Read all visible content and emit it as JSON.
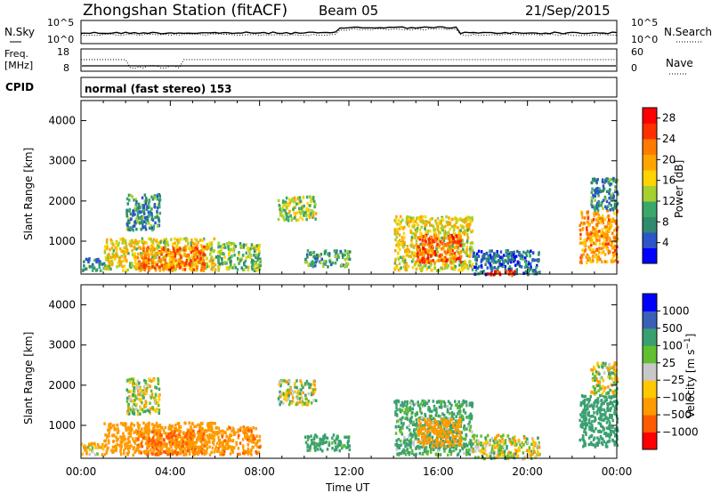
{
  "header": {
    "station": "Zhongshan Station (fitACF)",
    "beam": "Beam 05",
    "date": "21/Sep/2015"
  },
  "top_panel": {
    "left_label": "N.Sky",
    "left_ticks": [
      "10^5",
      "10^0"
    ],
    "right_label": "N.Search",
    "right_ticks": [
      "10^5",
      "10^0"
    ]
  },
  "freq_panel": {
    "left_label_1": "Freq.",
    "left_label_2": "[MHz]",
    "left_ticks": [
      "18",
      "8"
    ],
    "right_label": "Nave",
    "right_ticks": [
      "60",
      "0"
    ]
  },
  "cpid": {
    "label": "CPID",
    "text": "normal (fast stereo) 153"
  },
  "colors": {
    "power": [
      "#0000ff",
      "#2b55c8",
      "#2f8a6e",
      "#3aa86b",
      "#a4d030",
      "#ffd400",
      "#ffa500",
      "#ff7b00",
      "#ff3000",
      "#ff0000"
    ],
    "velocity": [
      "#ff0000",
      "#ff5a00",
      "#ff9a00",
      "#ffc800",
      "#c8c8c8",
      "#60c030",
      "#3aa070",
      "#3a60b8",
      "#0000ff"
    ]
  },
  "chart_data": [
    {
      "type": "heatmap",
      "name": "power",
      "ylabel": "Slant Range [km]",
      "yticks": [
        "1000",
        "2000",
        "3000",
        "4000"
      ],
      "ylim": [
        180,
        4500
      ],
      "colorbar_label": "Power [dB]",
      "colorbar_ticks": [
        "4",
        "8",
        "12",
        "16",
        "20",
        "24",
        "28"
      ],
      "colorbar_range": [
        0,
        30
      ],
      "regions": [
        {
          "t0": 0.0,
          "t1": 1.0,
          "r0": 300,
          "r1": 600,
          "value": 8
        },
        {
          "t0": 1.0,
          "t1": 6.0,
          "r0": 300,
          "r1": 1100,
          "value": 16
        },
        {
          "t0": 2.5,
          "t1": 5.5,
          "r0": 300,
          "r1": 900,
          "value": 22
        },
        {
          "t0": 2.0,
          "t1": 3.5,
          "r0": 1300,
          "r1": 2200,
          "value": 8
        },
        {
          "t0": 6.0,
          "t1": 8.0,
          "r0": 300,
          "r1": 1000,
          "value": 12
        },
        {
          "t0": 8.8,
          "t1": 10.5,
          "r0": 1550,
          "r1": 2150,
          "value": 14
        },
        {
          "t0": 10.0,
          "t1": 12.0,
          "r0": 400,
          "r1": 800,
          "value": 10
        },
        {
          "t0": 14.0,
          "t1": 17.5,
          "r0": 300,
          "r1": 1650,
          "value": 16
        },
        {
          "t0": 15.0,
          "t1": 17.0,
          "r0": 500,
          "r1": 1200,
          "value": 24
        },
        {
          "t0": 17.5,
          "t1": 20.5,
          "r0": 200,
          "r1": 800,
          "value": 6
        },
        {
          "t0": 18.0,
          "t1": 19.5,
          "r0": 180,
          "r1": 300,
          "value": 26
        },
        {
          "t0": 22.3,
          "t1": 24.0,
          "r0": 500,
          "r1": 1800,
          "value": 20
        },
        {
          "t0": 22.8,
          "t1": 24.0,
          "r0": 1800,
          "r1": 2600,
          "value": 8
        }
      ]
    },
    {
      "type": "heatmap",
      "name": "velocity",
      "ylabel": "Slant Range [km]",
      "yticks": [
        "1000",
        "2000",
        "3000",
        "4000"
      ],
      "ylim": [
        180,
        4500
      ],
      "xlabel": "Time UT",
      "xticks": [
        "00:00",
        "04:00",
        "08:00",
        "12:00",
        "16:00",
        "20:00",
        "00:00"
      ],
      "xlim": [
        0,
        24
      ],
      "colorbar_label": "Velocity [m s^-1]",
      "colorbar_ticks": [
        "1000",
        "500",
        "100",
        "25",
        "−25",
        "−100",
        "−500",
        "−1000"
      ],
      "regions": [
        {
          "t0": 0.0,
          "t1": 1.0,
          "r0": 300,
          "r1": 600,
          "value": -100
        },
        {
          "t0": 1.0,
          "t1": 6.0,
          "r0": 300,
          "r1": 1100,
          "value": -300
        },
        {
          "t0": 2.5,
          "t1": 5.5,
          "r0": 300,
          "r1": 900,
          "value": -500
        },
        {
          "t0": 2.0,
          "t1": 3.5,
          "r0": 1300,
          "r1": 2200,
          "value": 0
        },
        {
          "t0": 6.0,
          "t1": 8.0,
          "r0": 300,
          "r1": 1000,
          "value": -400
        },
        {
          "t0": 8.8,
          "t1": 10.5,
          "r0": 1550,
          "r1": 2150,
          "value": 0
        },
        {
          "t0": 10.0,
          "t1": 12.0,
          "r0": 400,
          "r1": 800,
          "value": 200
        },
        {
          "t0": 14.0,
          "t1": 17.5,
          "r0": 300,
          "r1": 1650,
          "value": 150
        },
        {
          "t0": 15.0,
          "t1": 17.0,
          "r0": 500,
          "r1": 1200,
          "value": -300
        },
        {
          "t0": 17.5,
          "t1": 20.5,
          "r0": 200,
          "r1": 800,
          "value": 0
        },
        {
          "t0": 22.3,
          "t1": 24.0,
          "r0": 500,
          "r1": 1800,
          "value": 300
        },
        {
          "t0": 22.8,
          "t1": 24.0,
          "r0": 1800,
          "r1": 2600,
          "value": 0
        }
      ]
    }
  ]
}
